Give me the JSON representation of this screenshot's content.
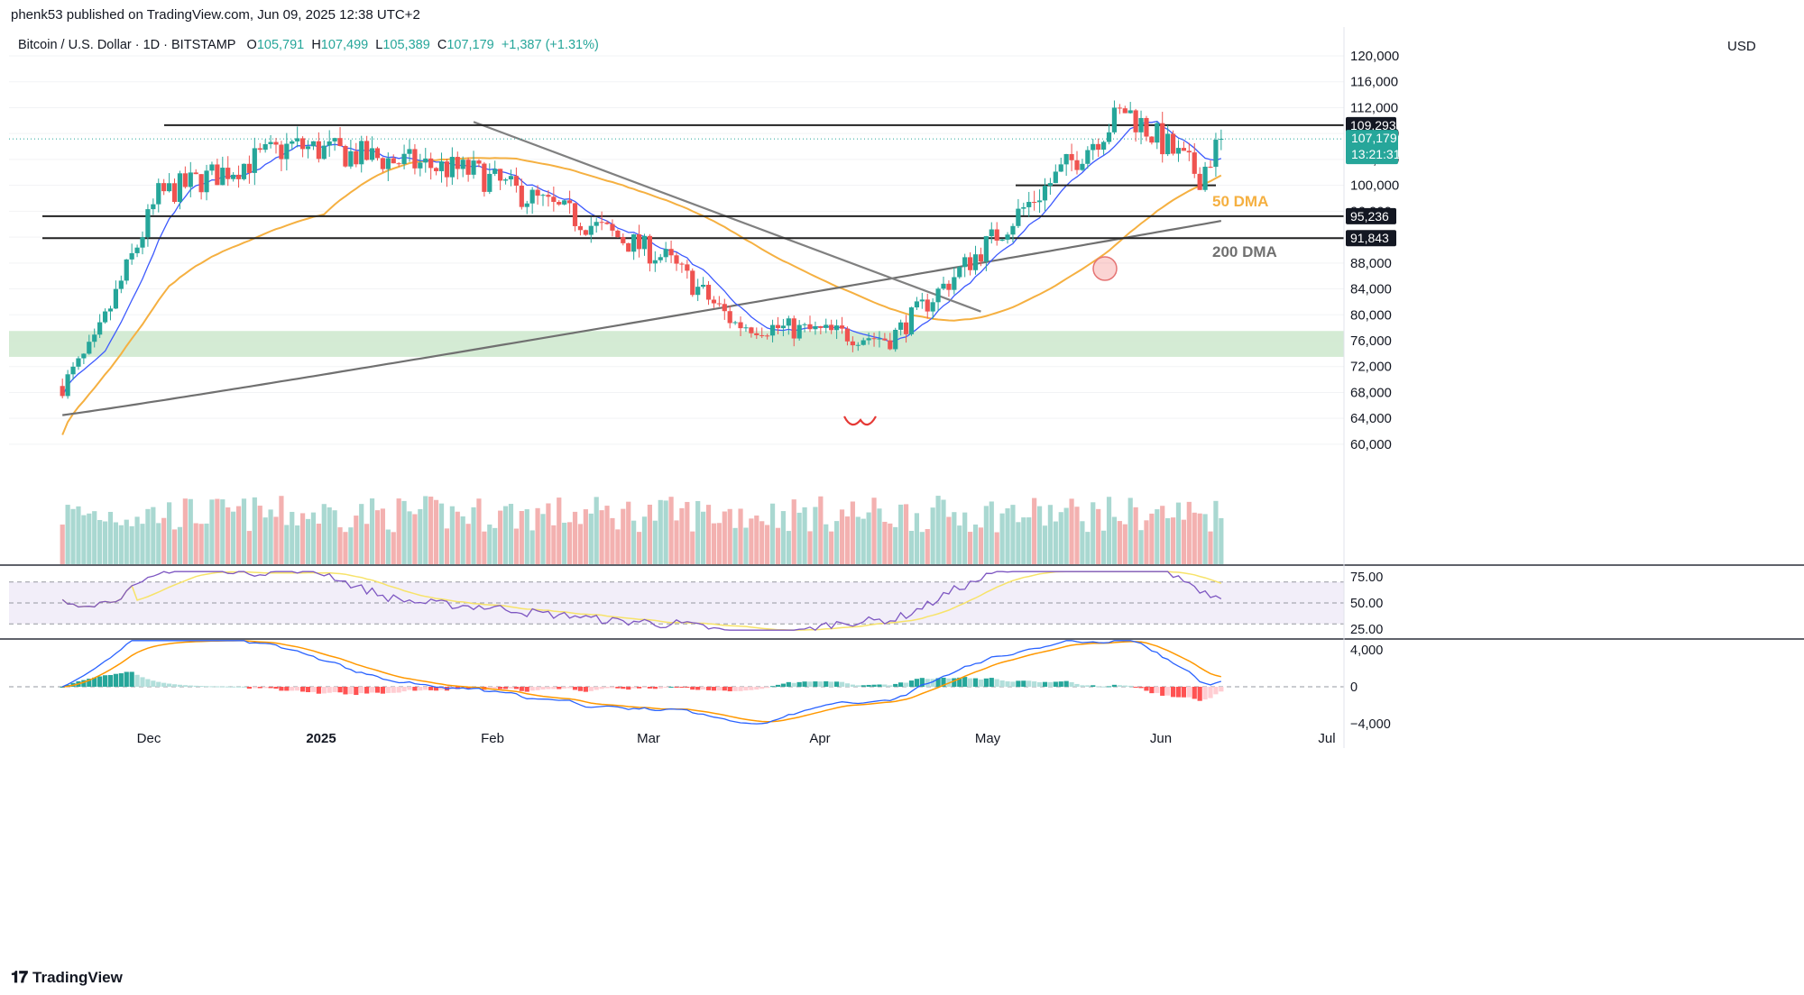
{
  "header": {
    "published": "phenk53 published on TradingView.com, Jun 09, 2025 12:38 UTC+2",
    "symbol": "Bitcoin / U.S. Dollar · 1D · BITSTAMP",
    "o_label": "O",
    "o": "105,791",
    "h_label": "H",
    "h": "107,499",
    "l_label": "L",
    "l": "105,389",
    "c_label": "C",
    "c": "107,179",
    "change": "+1,387 (+1.31%)",
    "currency": "USD"
  },
  "footer": {
    "brand": "TradingView",
    "logo": "tv-logo-icon"
  },
  "colors": {
    "up": "#26a69a",
    "down": "#ef5350",
    "dma50": "#f5b041",
    "dma200": "#707070",
    "rsi": "#7e57c2",
    "rsi_ma": "#f7e36a",
    "macd": "#2962ff",
    "signal": "#ff9800",
    "support_zone": "#cfe9cf"
  },
  "chart_data": [
    {
      "type": "candlestick",
      "title": "Bitcoin / U.S. Dollar · 1D · BITSTAMP",
      "x_tick_labels": [
        "Dec",
        "2025",
        "Feb",
        "Mar",
        "Apr",
        "May",
        "Jun",
        "Jul"
      ],
      "y_tick_labels": [
        "120,000",
        "116,000",
        "112,000",
        "108,000",
        "104,000",
        "100,000",
        "96,000",
        "92,000",
        "88,000",
        "84,000",
        "80,000",
        "76,000",
        "72,000",
        "68,000",
        "64,000",
        "60,000"
      ],
      "ylim": [
        56000,
        122000
      ],
      "price_labels": [
        {
          "value": 109293,
          "text": "109,293",
          "style": "dark"
        },
        {
          "value": 107179,
          "text": "107,179",
          "sub": "13:21:31",
          "style": "teal"
        },
        {
          "value": 95236,
          "text": "95,236",
          "style": "dark"
        },
        {
          "value": 91843,
          "text": "91,843",
          "style": "dark"
        }
      ],
      "annotations": [
        {
          "text": "50 DMA",
          "color": "#f5b041"
        },
        {
          "text": "200 DMA",
          "color": "#707070"
        }
      ],
      "horizontal_levels": [
        109293,
        100000,
        95236,
        91843
      ],
      "support_zone": [
        73500,
        77500
      ],
      "key_closes": [
        {
          "date": "2024-11-10",
          "close": 75500
        },
        {
          "date": "2024-11-22",
          "close": 98400
        },
        {
          "date": "2024-12-17",
          "close": 106100
        },
        {
          "date": "2025-01-20",
          "close": 102000
        },
        {
          "date": "2025-02-25",
          "close": 88700
        },
        {
          "date": "2025-03-10",
          "close": 78600
        },
        {
          "date": "2025-04-08",
          "close": 76300
        },
        {
          "date": "2025-05-22",
          "close": 111700
        },
        {
          "date": "2025-06-05",
          "close": 101500
        },
        {
          "date": "2025-06-09",
          "close": 107179
        }
      ]
    },
    {
      "type": "line",
      "title": "RSI",
      "y_tick_labels": [
        "75.00",
        "50.00",
        "25.00"
      ],
      "ylim": [
        20,
        80
      ],
      "bands": [
        30,
        50,
        70
      ],
      "last_value": 54
    },
    {
      "type": "bar",
      "title": "MACD",
      "y_tick_labels": [
        "4,000",
        "0",
        "−4,000"
      ],
      "ylim": [
        -4300,
        5200
      ],
      "last_macd": 1100,
      "last_signal": 1400
    }
  ]
}
